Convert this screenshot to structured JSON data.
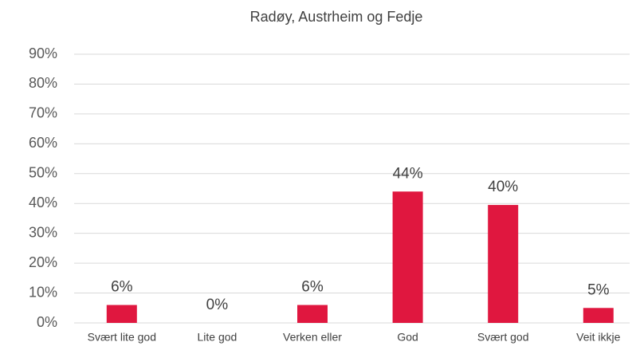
{
  "chart_data": {
    "type": "bar",
    "title": "Radøy, Austrheim og Fedje",
    "categories": [
      "Svært lite god",
      "Lite god",
      "Verken eller",
      "God",
      "Svært god",
      "Veit ikkje"
    ],
    "values": [
      6,
      0,
      6,
      44,
      39.5,
      5
    ],
    "value_labels": [
      "6%",
      "0%",
      "6%",
      "44%",
      "40%",
      "5%"
    ],
    "color": "#e0173f",
    "ylim": [
      0,
      90
    ],
    "yticks": [
      {
        "value": 0,
        "label": "0%"
      },
      {
        "value": 10,
        "label": "10%"
      },
      {
        "value": 20,
        "label": "20%"
      },
      {
        "value": 30,
        "label": "30%"
      },
      {
        "value": 40,
        "label": "40%"
      },
      {
        "value": 50,
        "label": "50%"
      },
      {
        "value": 60,
        "label": "60%"
      },
      {
        "value": 70,
        "label": "70%"
      },
      {
        "value": 80,
        "label": "80%"
      },
      {
        "value": 90,
        "label": "90%"
      }
    ],
    "grid": true
  }
}
